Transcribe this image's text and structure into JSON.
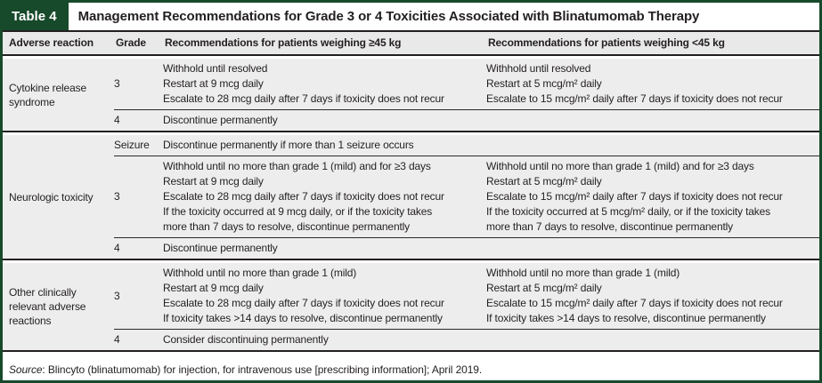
{
  "colors": {
    "accent_green": "#17492b",
    "text": "#231f20",
    "row_gray": "#ededed",
    "header_gray": "#e9e9e9",
    "background": "#ffffff"
  },
  "table": {
    "label": "Table 4",
    "title": "Management Recommendations for Grade 3 or 4 Toxicities Associated with Blinatumomab Therapy",
    "columns": [
      "Adverse reaction",
      "Grade",
      "Recommendations for patients weighing ≥45 kg",
      "Recommendations for patients weighing <45 kg"
    ],
    "sections": [
      {
        "reaction": "Cytokine release syndrome",
        "rows": [
          {
            "grade": "3",
            "rec_ge45": "Withhold until resolved\nRestart at 9 mcg daily\nEscalate to 28 mcg daily after 7 days if toxicity does not recur",
            "rec_lt45": "Withhold until resolved\nRestart at 5 mcg/m² daily\nEscalate to 15 mcg/m² daily after 7 days if toxicity does not recur"
          },
          {
            "grade": "4",
            "rec_span": "Discontinue permanently"
          }
        ]
      },
      {
        "reaction": "Neurologic toxicity",
        "rows": [
          {
            "grade": "Seizure",
            "rec_span": "Discontinue permanently if more than 1 seizure occurs"
          },
          {
            "grade": "3",
            "rec_ge45": "Withhold until no more than grade 1 (mild) and for ≥3 days\nRestart at 9 mcg daily\nEscalate to 28 mcg daily after 7 days if toxicity does not recur\nIf the toxicity occurred at 9 mcg daily, or if the toxicity takes\nmore than 7 days to resolve, discontinue permanently",
            "rec_lt45": "Withhold until no more than grade 1 (mild) and for ≥3 days\nRestart at 5 mcg/m² daily\nEscalate to 15 mcg/m² daily after 7 days if toxicity does not recur\nIf the toxicity occurred at 5 mcg/m² daily, or if the toxicity takes\nmore than 7 days to resolve, discontinue permanently"
          },
          {
            "grade": "4",
            "rec_span": "Discontinue permanently"
          }
        ]
      },
      {
        "reaction": "Other clinically relevant adverse reactions",
        "rows": [
          {
            "grade": "3",
            "rec_ge45": "Withhold until no more than grade 1 (mild)\nRestart at 9 mcg daily\nEscalate to 28 mcg daily after 7 days if toxicity does not recur\nIf toxicity takes >14 days to resolve, discontinue permanently",
            "rec_lt45": "Withhold until no more than grade 1 (mild)\nRestart at 5 mcg/m² daily\nEscalate to 15 mcg/m² daily after 7 days if toxicity does not recur\nIf toxicity takes >14 days to resolve, discontinue permanently"
          },
          {
            "grade": "4",
            "rec_span": "Consider discontinuing permanently"
          }
        ]
      }
    ],
    "source_label": "Source",
    "source_text": ": Blincyto (blinatumomab) for injection, for intravenous use [prescribing information]; April 2019."
  }
}
